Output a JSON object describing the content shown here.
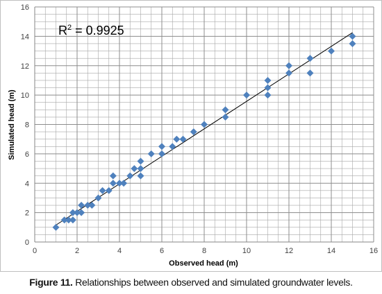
{
  "caption": {
    "label": "Figure 11.",
    "text": " Relationships between observed and simulated groundwater levels."
  },
  "annotation": {
    "r2_prefix": "R",
    "r2_sup": "2",
    "r2_value": " = 0.9925"
  },
  "colors": {
    "marker": "#4f81bd",
    "trendline": "#000000",
    "grid": "#a6a6a6",
    "axis": "#868686"
  },
  "chart_data": {
    "type": "scatter",
    "title": "",
    "xlabel": "Observed head (m)",
    "ylabel": "Simulated head (m)",
    "xlim": [
      0,
      16
    ],
    "ylim": [
      0,
      16
    ],
    "x_major_step": 2,
    "y_major_step": 2,
    "x_minor_step": 0.5,
    "y_minor_step": 0.5,
    "x_tick_labels": [
      "0",
      "2",
      "4",
      "6",
      "8",
      "10",
      "12",
      "14",
      "16"
    ],
    "y_tick_labels": [
      "0",
      "2",
      "4",
      "6",
      "8",
      "10",
      "12",
      "14",
      "16"
    ],
    "grid": true,
    "marker": "diamond",
    "r_squared": 0.9925,
    "trendline": {
      "x": [
        1,
        15
      ],
      "y": [
        1.15,
        14.25
      ]
    },
    "points": [
      [
        1,
        1
      ],
      [
        1.4,
        1.5
      ],
      [
        1.6,
        1.5
      ],
      [
        1.8,
        1.5
      ],
      [
        1.8,
        2
      ],
      [
        2,
        2
      ],
      [
        2.2,
        2
      ],
      [
        2.2,
        2.5
      ],
      [
        2.5,
        2.5
      ],
      [
        2.7,
        2.5
      ],
      [
        3,
        3
      ],
      [
        3.2,
        3.5
      ],
      [
        3.5,
        3.5
      ],
      [
        3.7,
        4
      ],
      [
        3.7,
        4.5
      ],
      [
        4,
        4
      ],
      [
        4.2,
        4
      ],
      [
        4.5,
        4.5
      ],
      [
        4.7,
        5
      ],
      [
        5,
        5
      ],
      [
        5,
        5.5
      ],
      [
        5,
        4.5
      ],
      [
        5.5,
        6
      ],
      [
        6,
        6
      ],
      [
        6,
        6.5
      ],
      [
        6.5,
        6.5
      ],
      [
        6.7,
        7
      ],
      [
        7,
        7
      ],
      [
        7.5,
        7.5
      ],
      [
        8,
        8
      ],
      [
        9,
        8.5
      ],
      [
        9,
        9
      ],
      [
        10,
        10
      ],
      [
        11,
        10
      ],
      [
        11,
        10.5
      ],
      [
        11,
        11
      ],
      [
        12,
        11.5
      ],
      [
        12,
        12
      ],
      [
        13,
        11.5
      ],
      [
        13,
        12.5
      ],
      [
        14,
        13
      ],
      [
        15,
        13.5
      ],
      [
        15,
        14
      ]
    ]
  }
}
